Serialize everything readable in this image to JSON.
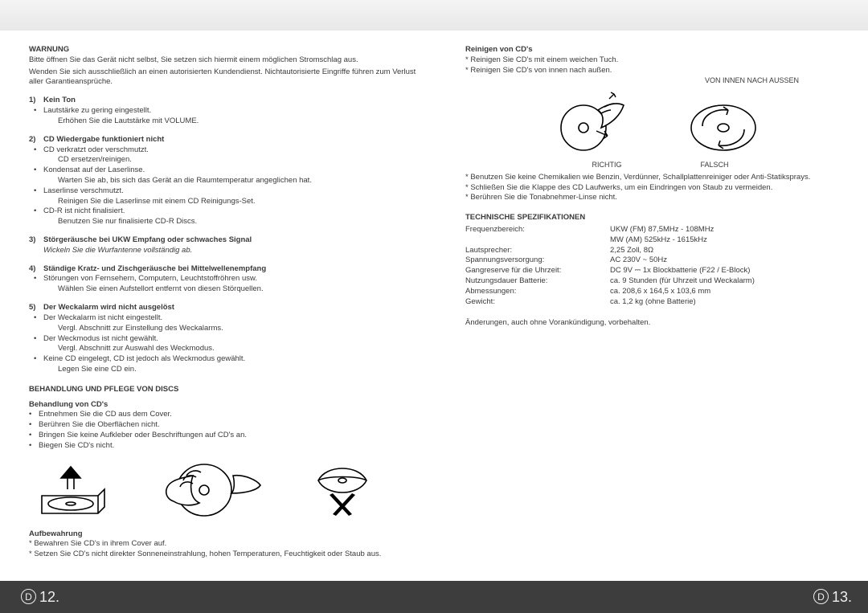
{
  "left": {
    "warning_title": "WARNUNG",
    "warning_p1": "Bitte öffnen Sie das Gerät nicht selbst, Sie setzen sich hiermit einem möglichen Stromschlag aus.",
    "warning_p2": "Wenden Sie sich ausschließlich an einen autorisierten Kundendienst. Nichtautorisierte Eingriffe führen zum Verlust aller Garantieansprüche.",
    "items": [
      {
        "n": "1)",
        "title": "Kein Ton",
        "bullets": [
          {
            "t": "Lautstärke zu gering eingestellt.",
            "sub": "Erhöhen Sie die Lautstärke mit VOLUME."
          }
        ]
      },
      {
        "n": "2)",
        "title": "CD Wiedergabe funktioniert nicht",
        "bullets": [
          {
            "t": "CD verkratzt oder verschmutzt.",
            "sub": "CD ersetzen/reinigen."
          },
          {
            "t": "Kondensat auf der Laserlinse.",
            "sub": "Warten Sie ab, bis sich das Gerät an die Raumtemperatur angeglichen hat."
          },
          {
            "t": "Laserlinse verschmutzt.",
            "sub": "Reinigen Sie die Laserlinse mit einem CD Reinigungs-Set."
          },
          {
            "t": "CD-R ist nicht finalisiert.",
            "sub": "Benutzen Sie nur finalisierte CD-R Discs."
          }
        ]
      },
      {
        "n": "3)",
        "title": "Störgeräusche bei UKW Empfang oder schwaches Signal",
        "italic_sub": "Wickeln Sie die Wurfantenne vollständig ab."
      },
      {
        "n": "4)",
        "title": "Ständige Kratz- und Zischgeräusche bei Mittelwellenempfang",
        "bullets": [
          {
            "t": "Störungen von Fernsehern, Computern, Leuchtstoffröhren usw.",
            "sub": "Wählen Sie einen Aufstellort entfernt von diesen Störquellen."
          }
        ]
      },
      {
        "n": "5)",
        "title": "Der Weckalarm wird nicht ausgelöst",
        "bullets": [
          {
            "t": "Der Weckalarm ist nicht eingestellt.",
            "sub": "Vergl. Abschnitt zur Einstellung des Weckalarms."
          },
          {
            "t": "Der Weckmodus ist nicht gewählt.",
            "sub": "Vergl. Abschnitt zur Auswahl des Weckmodus."
          },
          {
            "t": "Keine CD eingelegt, CD ist jedoch als Weckmodus gewählt.",
            "sub": "Legen Sie eine CD ein."
          }
        ]
      }
    ],
    "discs_h1": "BEHANDLUNG UND PFLEGE VON DISCS",
    "discs_h2": "Behandlung von CD's",
    "discs_bullets": [
      "Entnehmen Sie die CD aus dem Cover.",
      "Berühren Sie die Oberflächen nicht.",
      "Bringen Sie keine Aufkleber oder Beschriftungen auf CD's an.",
      "Biegen Sie CD's nicht."
    ],
    "storage_h": "Aufbewahrung",
    "storage_bullets": [
      "Bewahren Sie CD's in ihrem Cover auf.",
      "Setzen Sie CD's nicht direkter Sonneneinstrahlung, hohen Temperaturen, Feuchtigkeit oder Staub aus."
    ]
  },
  "right": {
    "clean_h": "Reinigen von CD's",
    "clean_bullets": [
      "Reinigen Sie CD's mit einem weichen Tuch.",
      "Reinigen Sie CD's von innen nach außen."
    ],
    "caption_top": "VON INNEN NACH AUSSEN",
    "caption_correct": "RICHTIG",
    "caption_wrong": "FALSCH",
    "clean_notes": [
      "Benutzen Sie keine Chemikalien wie Benzin, Verdünner, Schallplattenreiniger oder Anti-Statiksprays.",
      "Schließen Sie die Klappe des CD Laufwerks, um ein Eindringen von Staub zu vermeiden.",
      "Berühren Sie die Tonabnehmer-Linse nicht."
    ],
    "spec_h": "TECHNISCHE SPEZIFIKATIONEN",
    "specs": [
      {
        "label": "Frequenzbereich:",
        "val": "UKW (FM) 87,5MHz - 108MHz"
      },
      {
        "label": "",
        "val": "MW (AM) 525kHz - 1615kHz"
      },
      {
        "label": "Lautsprecher:",
        "val": "2,25 Zoll, 8Ω"
      },
      {
        "label": "Spannungsversorgung:",
        "val": "AC 230V ~ 50Hz"
      },
      {
        "label": "Gangreserve für die Uhrzeit:",
        "val": "DC 9V ⎓ 1x Blockbatterie (F22 / E-Block)"
      },
      {
        "label": "Nutzungsdauer Batterie:",
        "val": "ca. 9 Stunden (für Uhrzeit und Weckalarm)"
      },
      {
        "label": "Abmessungen:",
        "val": "ca. 208,6 x 164,5 x 103,6 mm"
      },
      {
        "label": "Gewicht:",
        "val": "ca. 1,2 kg (ohne Batterie)"
      }
    ],
    "disclaimer": "Änderungen, auch ohne Vorankündigung, vorbehalten."
  },
  "footer": {
    "d": "D",
    "left_page": "12.",
    "right_page": "13."
  }
}
